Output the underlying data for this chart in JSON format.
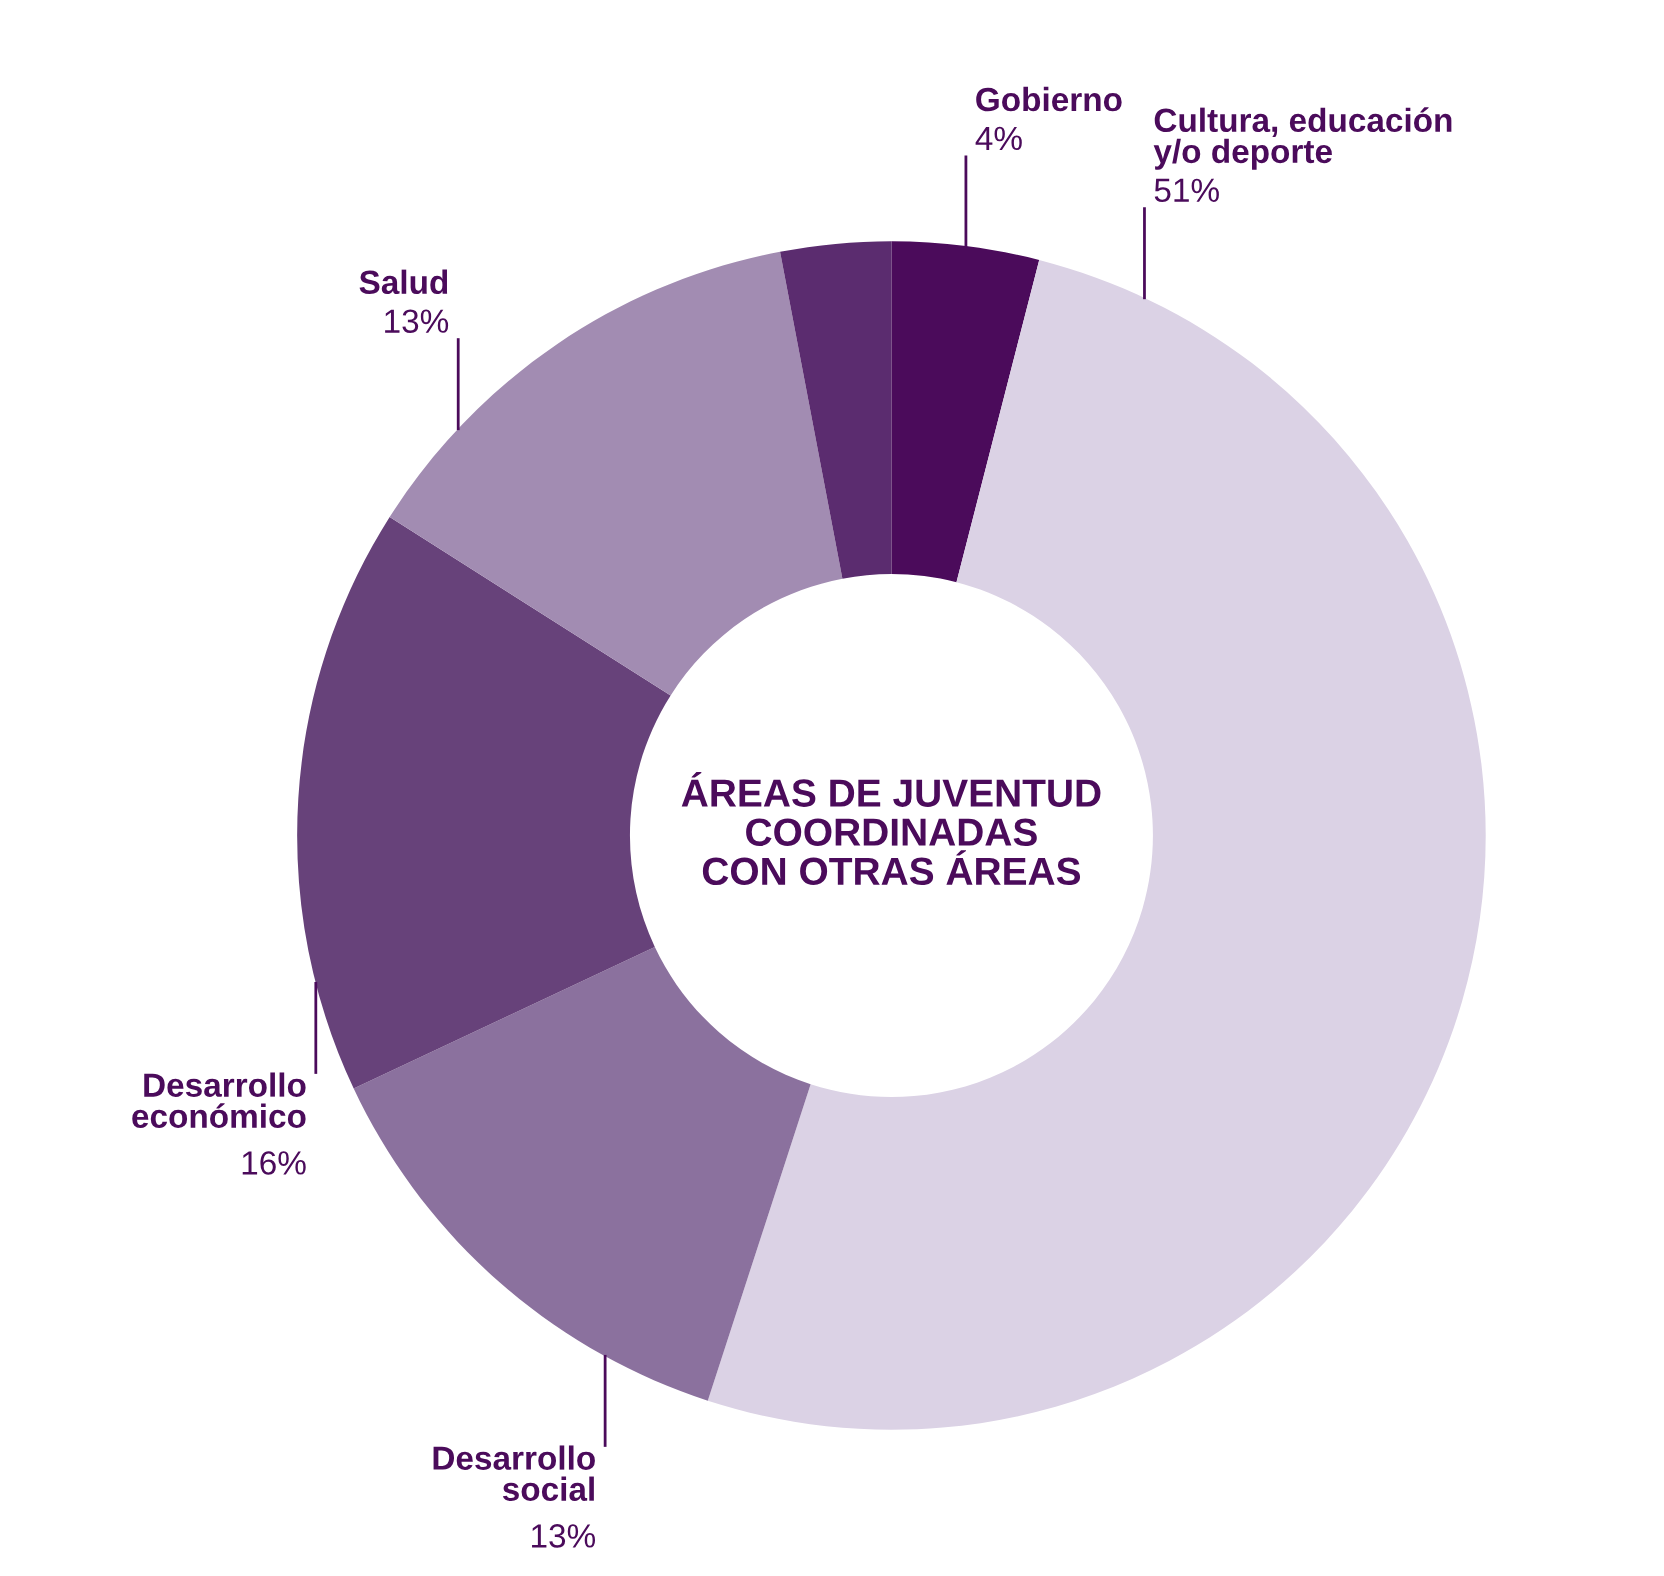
{
  "chart_data": {
    "type": "donut",
    "title": "ÁREAS DE JUVENTUD\nCOORDINADAS\nCON OTRAS ÁREAS",
    "categories": [
      "Gobierno",
      "Cultura, educación y/o deporte",
      "Desarrollo social",
      "Desarrollo económico",
      "Salud",
      null
    ],
    "values": [
      4,
      51,
      13,
      16,
      13,
      3
    ],
    "colors": [
      "#4b0b5b",
      "#dbd2e5",
      "#8b719e",
      "#67427a",
      "#a28cb2",
      "#5b2c6f"
    ],
    "value_labels": [
      "4%",
      "51%",
      "13%",
      "16%",
      "13%",
      null
    ]
  }
}
